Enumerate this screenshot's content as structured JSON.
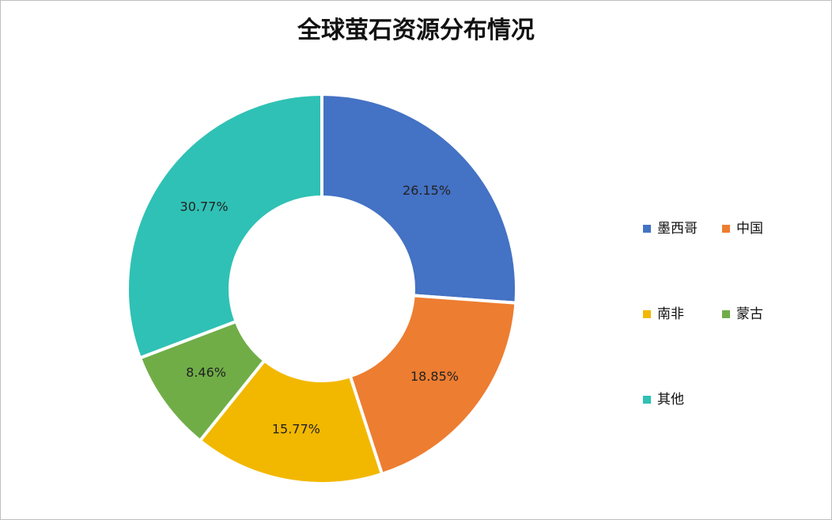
{
  "chart_data": {
    "type": "donut",
    "title": "全球萤石资源分布情况",
    "categories": [
      "墨西哥",
      "中国",
      "南非",
      "蒙古",
      "其他"
    ],
    "values": [
      26.15,
      18.85,
      15.77,
      8.46,
      30.77
    ],
    "value_labels": [
      "26.15%",
      "18.85%",
      "15.77%",
      "8.46%",
      "30.77%"
    ],
    "colors": [
      "#4472c4",
      "#ed7d31",
      "#f2b800",
      "#70ad47",
      "#2fc1b5"
    ],
    "legend": "right"
  }
}
